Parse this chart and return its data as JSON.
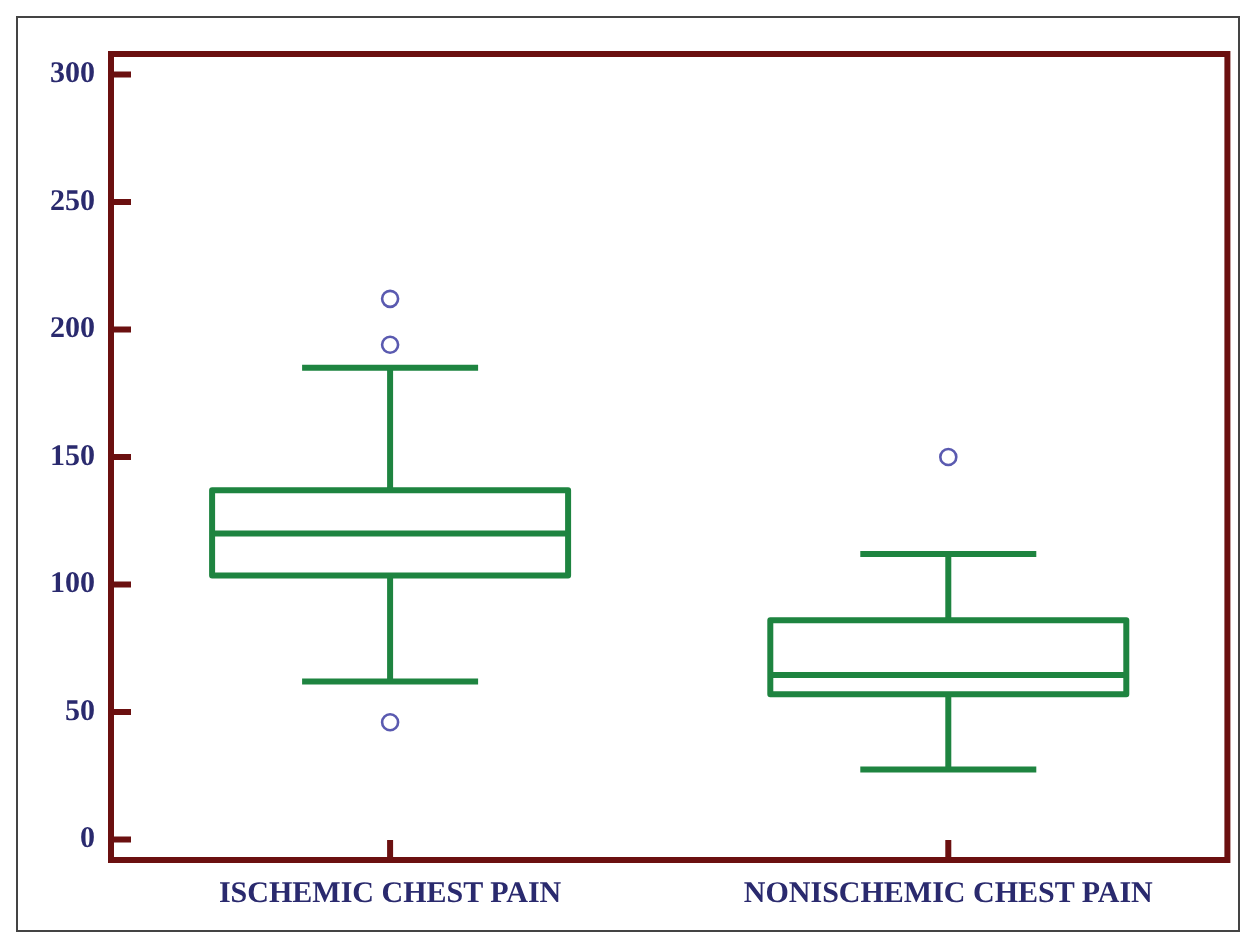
{
  "chart_data": {
    "type": "box",
    "categories": [
      "ISCHEMIC CHEST PAIN",
      "NONISCHEMIC CHEST PAIN"
    ],
    "boxes": [
      {
        "low": 62,
        "q1": 103.5,
        "median": 120,
        "q3": 137,
        "high": 185,
        "outliers": [
          212,
          194,
          46
        ]
      },
      {
        "low": 27.5,
        "q1": 57,
        "median": 64.5,
        "q3": 86,
        "high": 112,
        "outliers": [
          150
        ]
      }
    ],
    "color": "#1e8440",
    "ylim": [
      -8,
      308
    ],
    "yticks": [
      0,
      50,
      100,
      150,
      200,
      250,
      300
    ],
    "grid": false,
    "legend": false
  }
}
